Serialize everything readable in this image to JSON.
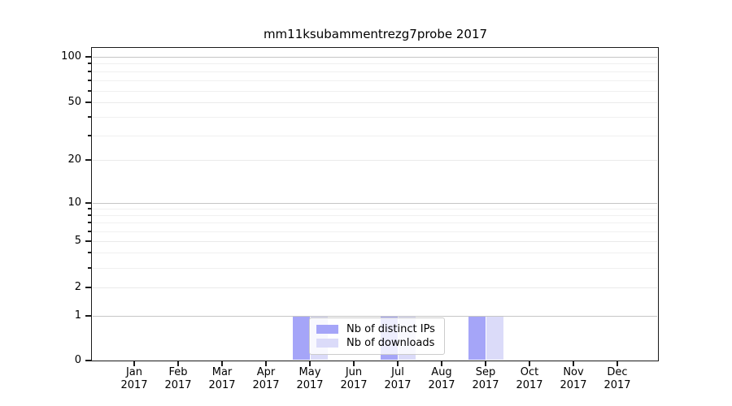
{
  "figure": {
    "background": "#ffffff",
    "title": "mm11ksubammentrezg7probe 2017"
  },
  "chart_data": {
    "type": "bar",
    "title": "mm11ksubammentrezg7probe 2017",
    "categories": [
      "Jan 2017",
      "Feb 2017",
      "Mar 2017",
      "Apr 2017",
      "May 2017",
      "Jun 2017",
      "Jul 2017",
      "Aug 2017",
      "Sep 2017",
      "Oct 2017",
      "Nov 2017",
      "Dec 2017"
    ],
    "series": [
      {
        "name": "Nb of distinct IPs",
        "color": "#a5a5f8",
        "values": [
          0,
          0,
          0,
          0,
          1,
          0,
          1,
          0,
          1,
          0,
          0,
          0
        ]
      },
      {
        "name": "Nb of downloads",
        "color": "#dbdbf9",
        "values": [
          0,
          0,
          0,
          0,
          1,
          0,
          1,
          0,
          1,
          0,
          0,
          0
        ]
      }
    ],
    "xlabel": "",
    "ylabel": "",
    "yscale": "symlog",
    "ylim": [
      0,
      120
    ],
    "y_tick_values": [
      0,
      1,
      2,
      5,
      10,
      20,
      50,
      100
    ],
    "y_tick_labels": [
      "0",
      "1",
      "2",
      "5",
      "10",
      "20",
      "50",
      "100"
    ],
    "grid": "horizontal, log minor gridlines on",
    "legend_position": "inside bottom-center",
    "bar_value": 1
  },
  "y_axis": {
    "tick_labels": [
      "100",
      "50",
      "20",
      "10",
      "5",
      "2",
      "1",
      "0"
    ]
  },
  "x_axis": {
    "year_line": "2017",
    "months": [
      "Jan",
      "Feb",
      "Mar",
      "Apr",
      "May",
      "Jun",
      "Jul",
      "Aug",
      "Sep",
      "Oct",
      "Nov",
      "Dec"
    ]
  },
  "legend": {
    "items": [
      {
        "label": "Nb of distinct IPs",
        "color": "#a5a5f8"
      },
      {
        "label": "Nb of downloads",
        "color": "#dbdbf9"
      }
    ]
  },
  "colors": {
    "bar_distinct_ips": "#a5a5f8",
    "bar_downloads": "#dbdbf9",
    "major_gridline": "#c6c6c6",
    "labeled_gridline": "#eaeaea",
    "minor_gridline": "#f0f0f0",
    "axis": "#1a1a1a",
    "legend_border": "#cccccc"
  }
}
